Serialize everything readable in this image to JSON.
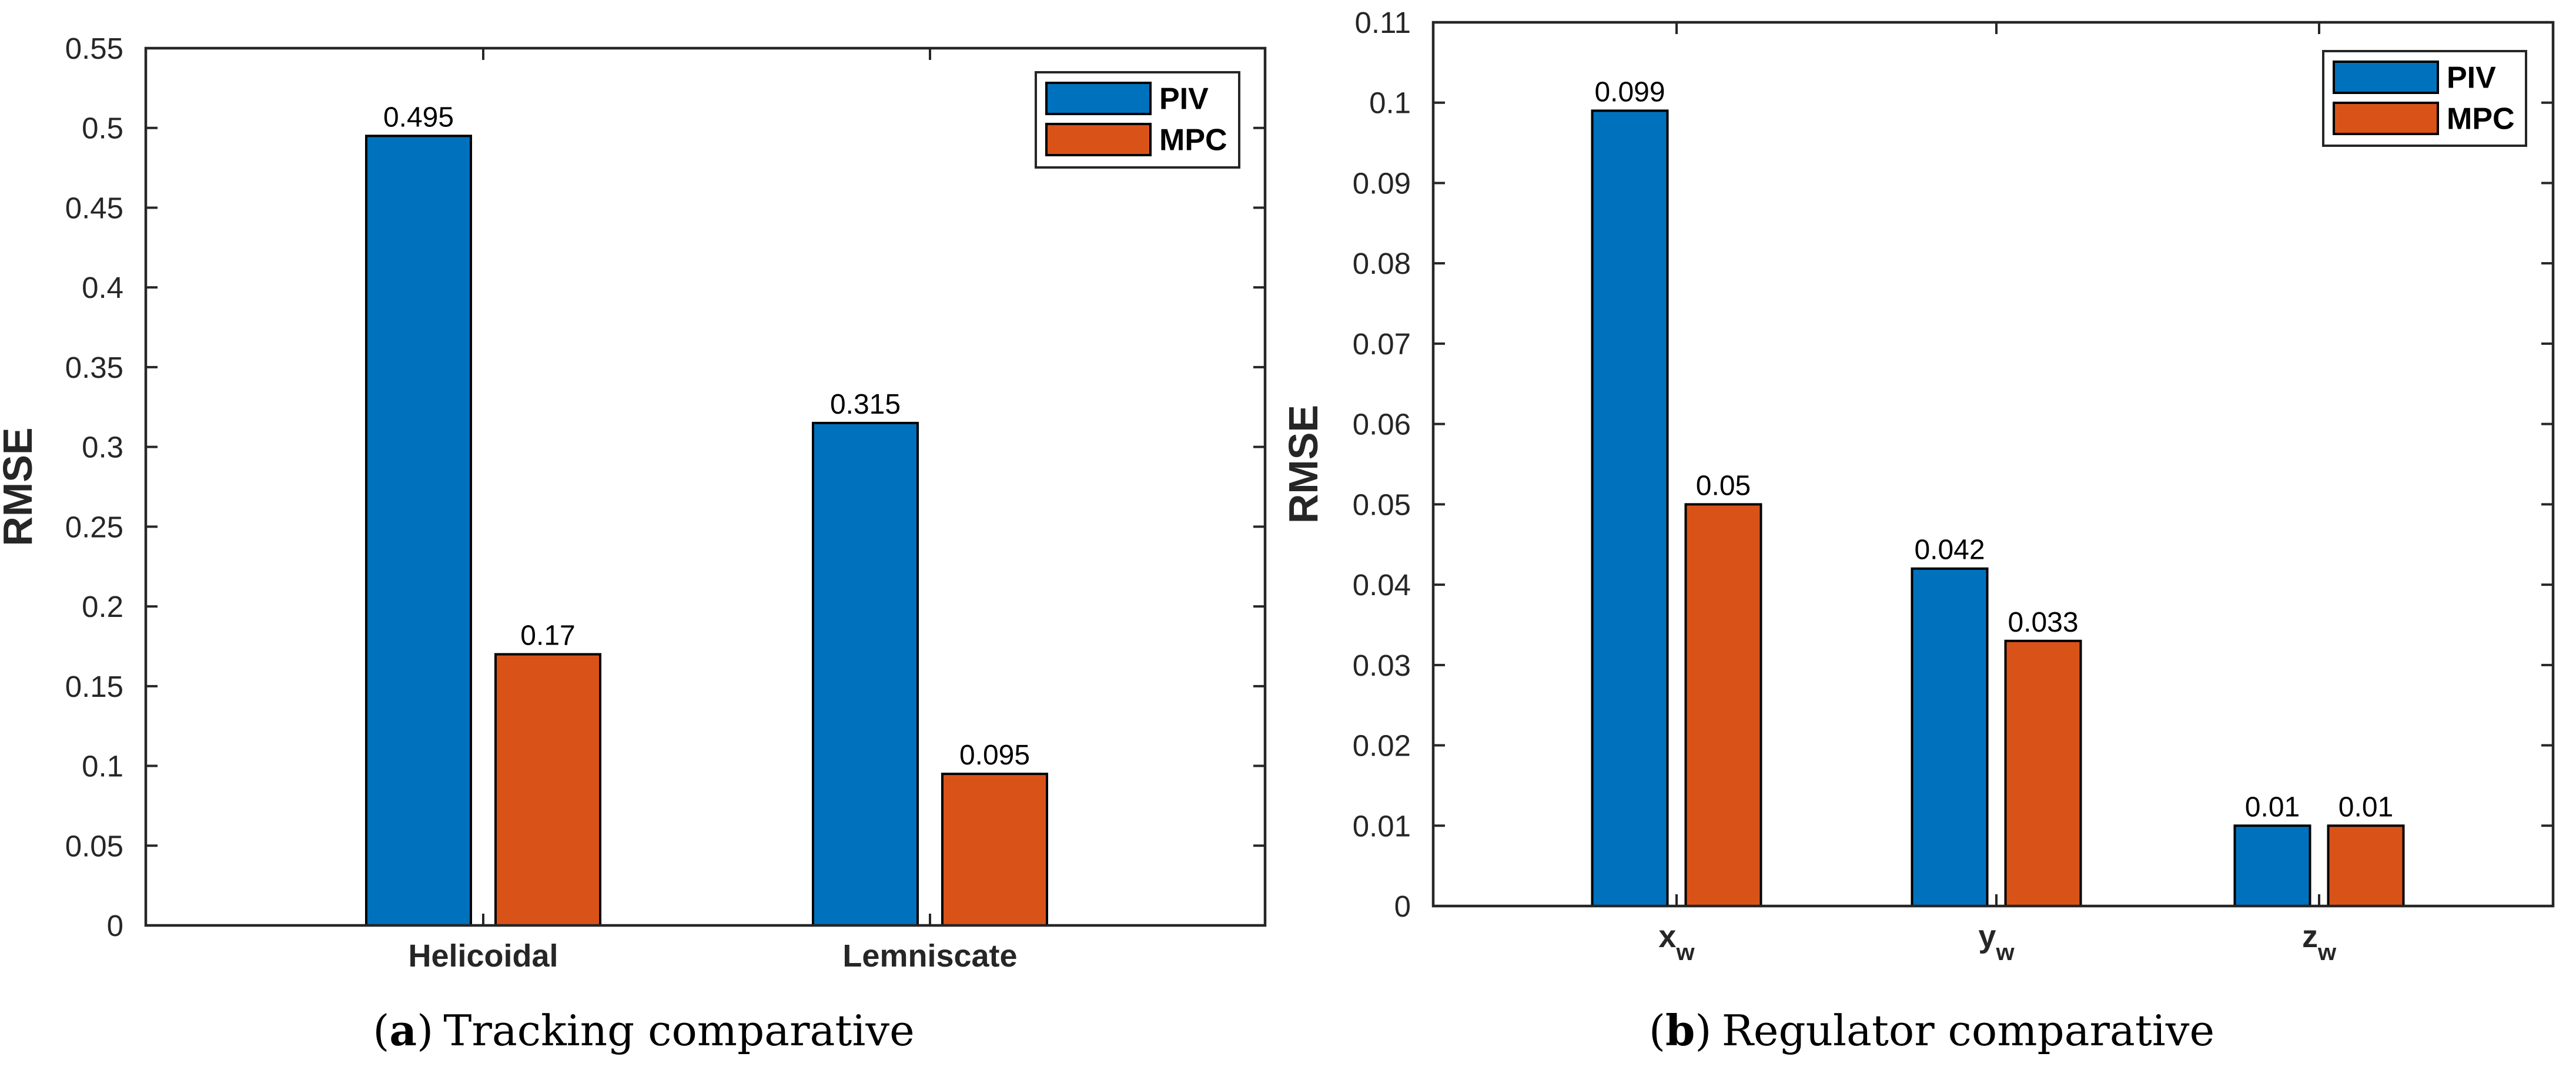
{
  "figure_title": "RMSE comparative bar charts (PIV vs MPC)",
  "colors": {
    "piv": "#0072BD",
    "mpc": "#D95319",
    "axis": "#262626",
    "bar_edge": "#000000",
    "text": "#000000",
    "background": "#ffffff"
  },
  "chart_data": [
    {
      "type": "bar",
      "title": "",
      "xlabel": "",
      "ylabel": "RMSE",
      "ylim": [
        0,
        0.55
      ],
      "ytick_step": 0.05,
      "ytick_labels": [
        "0",
        "0.05",
        "0.1",
        "0.15",
        "0.2",
        "0.25",
        "0.3",
        "0.35",
        "0.4",
        "0.45",
        "0.5",
        "0.55"
      ],
      "categories": [
        {
          "base": "Helicoidal",
          "sub": ""
        },
        {
          "base": "Lemniscate",
          "sub": ""
        }
      ],
      "series": [
        {
          "name": "PIV",
          "color": "#0072BD",
          "values": [
            0.495,
            0.315
          ],
          "labels": [
            "0.495",
            "0.315"
          ]
        },
        {
          "name": "MPC",
          "color": "#D95319",
          "values": [
            0.17,
            0.095
          ],
          "labels": [
            "0.17",
            "0.095"
          ]
        }
      ],
      "grid": false,
      "legend_position": "top-right",
      "legend_entries": [
        "PIV",
        "MPC"
      ],
      "caption": {
        "paren_open": "(",
        "letter": "a",
        "paren_close": ")",
        "text": "Tracking comparative"
      }
    },
    {
      "type": "bar",
      "title": "",
      "xlabel": "",
      "ylabel": "RMSE",
      "ylim": [
        0,
        0.11
      ],
      "ytick_step": 0.01,
      "ytick_labels": [
        "0",
        "0.01",
        "0.02",
        "0.03",
        "0.04",
        "0.05",
        "0.06",
        "0.07",
        "0.08",
        "0.09",
        "0.1",
        "0.11"
      ],
      "categories": [
        {
          "base": "x",
          "sub": "w"
        },
        {
          "base": "y",
          "sub": "w"
        },
        {
          "base": "z",
          "sub": "w"
        }
      ],
      "series": [
        {
          "name": "PIV",
          "color": "#0072BD",
          "values": [
            0.099,
            0.042,
            0.01
          ],
          "labels": [
            "0.099",
            "0.042",
            "0.01"
          ]
        },
        {
          "name": "MPC",
          "color": "#D95319",
          "values": [
            0.05,
            0.033,
            0.01
          ],
          "labels": [
            "0.05",
            "0.033",
            "0.01"
          ]
        }
      ],
      "grid": false,
      "legend_position": "top-right",
      "legend_entries": [
        "PIV",
        "MPC"
      ],
      "caption": {
        "paren_open": "(",
        "letter": "b",
        "paren_close": ")",
        "text": "Regulator comparative"
      }
    }
  ]
}
